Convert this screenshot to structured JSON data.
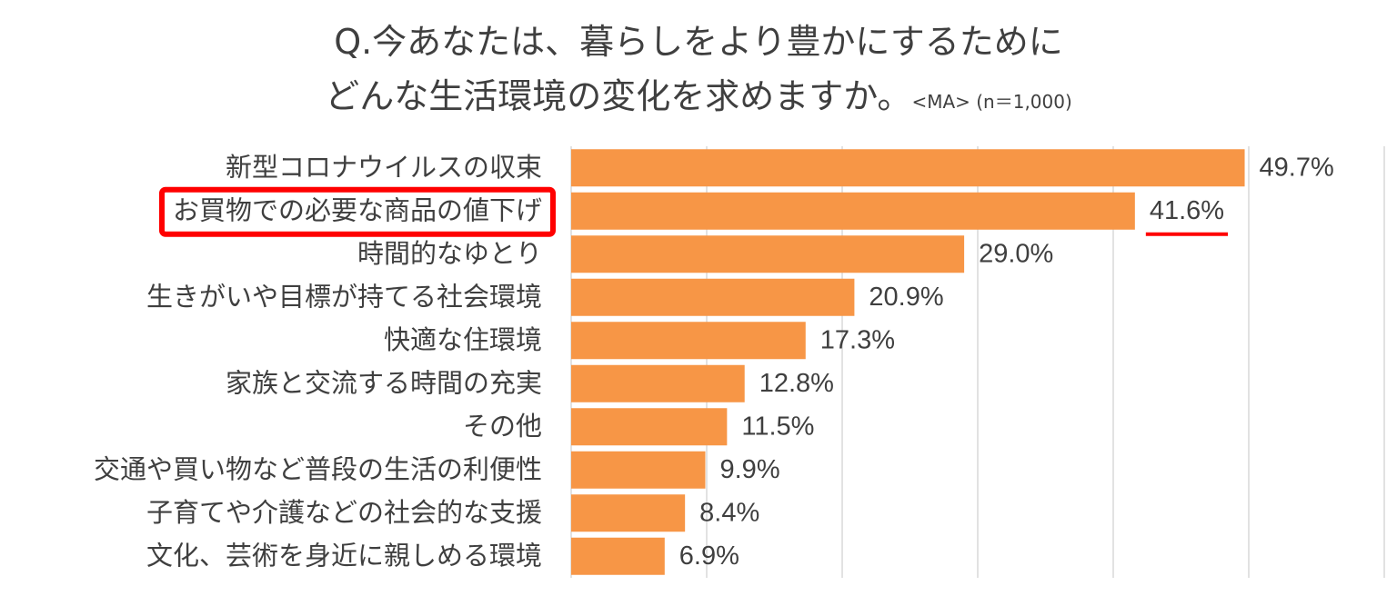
{
  "title": {
    "line1": "Q.今あなたは、暮らしをより豊かにするために",
    "line2": "どんな生活環境の変化を求めますか。",
    "note": "<MA> (n＝1,000)"
  },
  "colors": {
    "bar": "#F79646",
    "highlight": "#FF0000",
    "grid": "#D9D9D9",
    "text": "#404040"
  },
  "chart_data": {
    "type": "bar",
    "orientation": "horizontal",
    "categories": [
      "新型コロナウイルスの収束",
      "お買物での必要な商品の値下げ",
      "時間的なゆとり",
      "生きがいや目標が持てる社会環境",
      "快適な住環境",
      "家族と交流する時間の充実",
      "その他",
      "交通や買い物など普段の生活の利便性",
      "子育てや介護などの社会的な支援",
      "文化、芸術を身近に親しめる環境"
    ],
    "values": [
      49.7,
      41.6,
      29.0,
      20.9,
      17.3,
      12.8,
      11.5,
      9.9,
      8.4,
      6.9
    ],
    "value_labels": [
      "49.7%",
      "41.6%",
      "29.0%",
      "20.9%",
      "17.3%",
      "12.8%",
      "11.5%",
      "9.9%",
      "8.4%",
      "6.9%"
    ],
    "xlim": [
      0,
      60
    ],
    "grid": true,
    "highlighted_category": "お買物での必要な商品の値下げ"
  }
}
